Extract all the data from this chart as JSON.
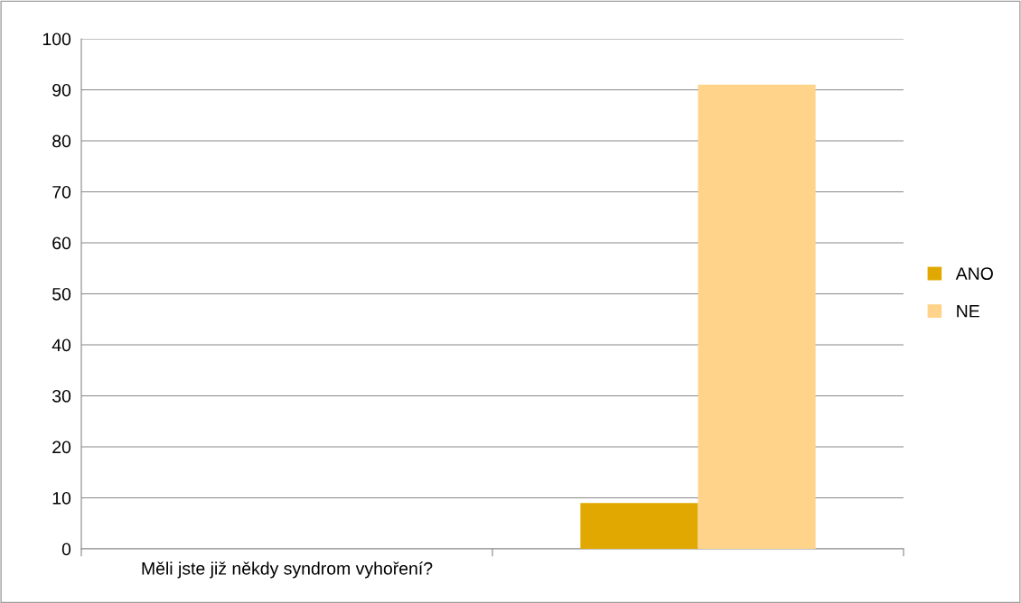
{
  "chart_data": {
    "type": "bar",
    "categories": [
      "Měli jste již někdy syndrom vyhoření?",
      null
    ],
    "series": [
      {
        "name": "ANO",
        "color": "#e0a800",
        "values": [
          null,
          9
        ]
      },
      {
        "name": "NE",
        "color": "#ffd38a",
        "values": [
          null,
          91
        ]
      }
    ],
    "ylim": [
      0,
      100
    ],
    "yticks": [
      0,
      10,
      20,
      30,
      40,
      50,
      60,
      70,
      80,
      90,
      100
    ],
    "grid": "y",
    "legend": "right"
  }
}
